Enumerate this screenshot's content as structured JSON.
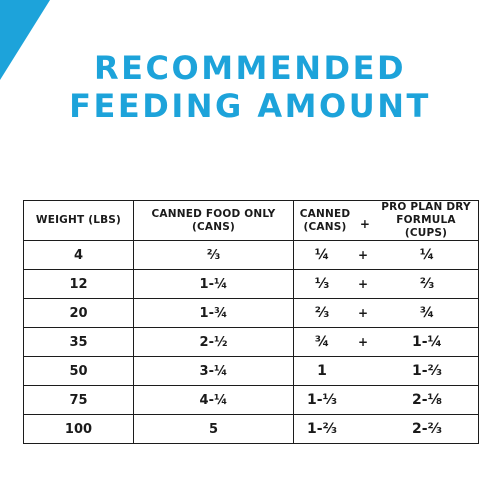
{
  "colors": {
    "accent": "#1DA3DA",
    "text": "#1a1a1a",
    "border": "#1c1c1c"
  },
  "title": {
    "line1": "RECOMMENDED",
    "line2": "FEEDING AMOUNT"
  },
  "table": {
    "headers": {
      "weight": "WEIGHT (LBS)",
      "canned_only_line1": "CANNED FOOD ONLY",
      "canned_only_line2": "(CANS)",
      "canned_line1": "CANNED",
      "canned_line2": "(CANS)",
      "plus": "+",
      "dry_line1": "PRO PLAN DRY",
      "dry_line2": "FORMULA (CUPS)"
    },
    "rows": [
      {
        "weight": "4",
        "canned_only": "⅔",
        "canned": "¼",
        "plus": "+",
        "dry": "¼"
      },
      {
        "weight": "12",
        "canned_only": "1-¼",
        "canned": "⅓",
        "plus": "+",
        "dry": "⅔"
      },
      {
        "weight": "20",
        "canned_only": "1-¾",
        "canned": "⅔",
        "plus": "+",
        "dry": "¾"
      },
      {
        "weight": "35",
        "canned_only": "2-½",
        "canned": "¾",
        "plus": "+",
        "dry": "1-¼"
      },
      {
        "weight": "50",
        "canned_only": "3-¼",
        "canned": "1",
        "plus": "",
        "dry": "1-⅔"
      },
      {
        "weight": "75",
        "canned_only": "4-¼",
        "canned": "1-⅓",
        "plus": "",
        "dry": "2-⅛"
      },
      {
        "weight": "100",
        "canned_only": "5",
        "canned": "1-⅔",
        "plus": "",
        "dry": "2-⅔"
      }
    ]
  }
}
